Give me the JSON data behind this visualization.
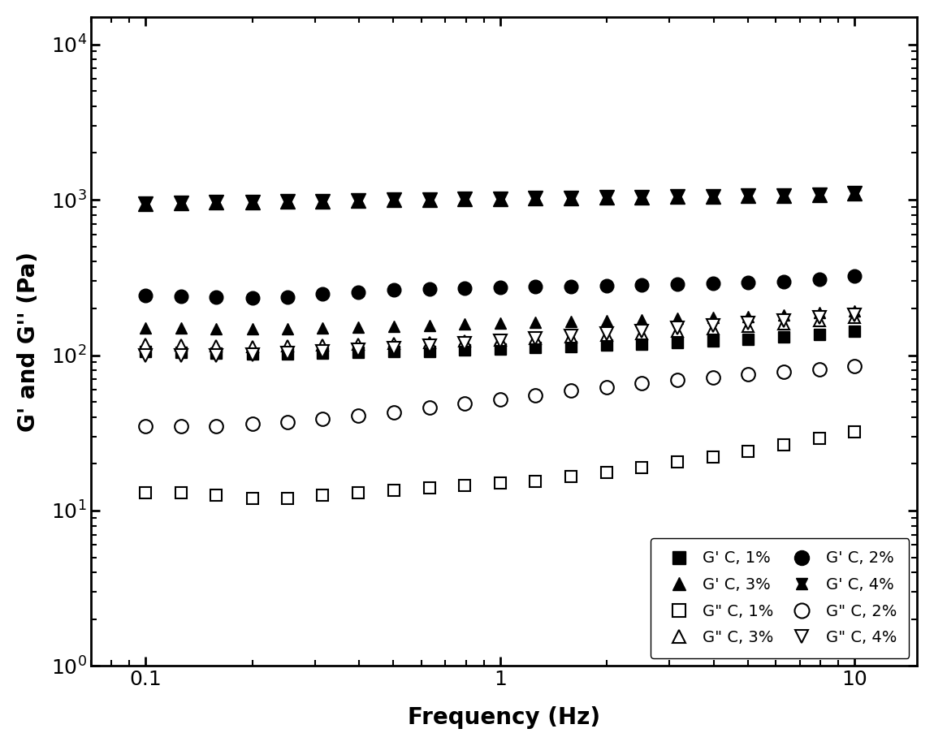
{
  "xlabel": "Frequency (Hz)",
  "ylabel": "G’ and G’’ (Pa)",
  "xlim": [
    0.07,
    15
  ],
  "ylim": [
    1,
    15000
  ],
  "freq": [
    0.1,
    0.126,
    0.158,
    0.2,
    0.251,
    0.316,
    0.398,
    0.501,
    0.631,
    0.794,
    1.0,
    1.259,
    1.585,
    1.995,
    2.512,
    3.162,
    3.981,
    5.012,
    6.31,
    7.943,
    10.0
  ],
  "G_prime_1pct": [
    105,
    104,
    103,
    102,
    102,
    103,
    104,
    105,
    106,
    108,
    110,
    112,
    114,
    116,
    118,
    121,
    124,
    127,
    131,
    136,
    143
  ],
  "G_dbl_prime_1pct": [
    13,
    13,
    12.5,
    12,
    12,
    12.5,
    13,
    13.5,
    14,
    14.5,
    15,
    15.5,
    16.5,
    17.5,
    19,
    20.5,
    22,
    24,
    26.5,
    29,
    32
  ],
  "G_prime_2pct": [
    242,
    238,
    235,
    233,
    237,
    248,
    255,
    262,
    267,
    270,
    272,
    275,
    277,
    280,
    283,
    286,
    289,
    293,
    298,
    308,
    322
  ],
  "G_dbl_prime_2pct": [
    35,
    35,
    35,
    36,
    37,
    39,
    41,
    43,
    46,
    49,
    52,
    55,
    59,
    62,
    66,
    69,
    72,
    75,
    78,
    81,
    85
  ],
  "G_prime_3pct": [
    150,
    149,
    148,
    147,
    148,
    150,
    152,
    154,
    156,
    158,
    160,
    162,
    164,
    167,
    169,
    172,
    175,
    178,
    182,
    187,
    193
  ],
  "G_dbl_prime_3pct": [
    118,
    116,
    115,
    114,
    115,
    116,
    117,
    119,
    121,
    123,
    125,
    128,
    131,
    134,
    138,
    142,
    147,
    153,
    159,
    166,
    174
  ],
  "G_prime_4pct": [
    940,
    950,
    960,
    968,
    975,
    982,
    990,
    997,
    1003,
    1010,
    1016,
    1022,
    1028,
    1034,
    1040,
    1046,
    1052,
    1058,
    1064,
    1074,
    1100
  ],
  "G_dbl_prime_4pct": [
    100,
    100,
    100,
    101,
    103,
    105,
    108,
    111,
    115,
    119,
    123,
    128,
    133,
    138,
    143,
    149,
    155,
    161,
    167,
    174,
    182
  ]
}
